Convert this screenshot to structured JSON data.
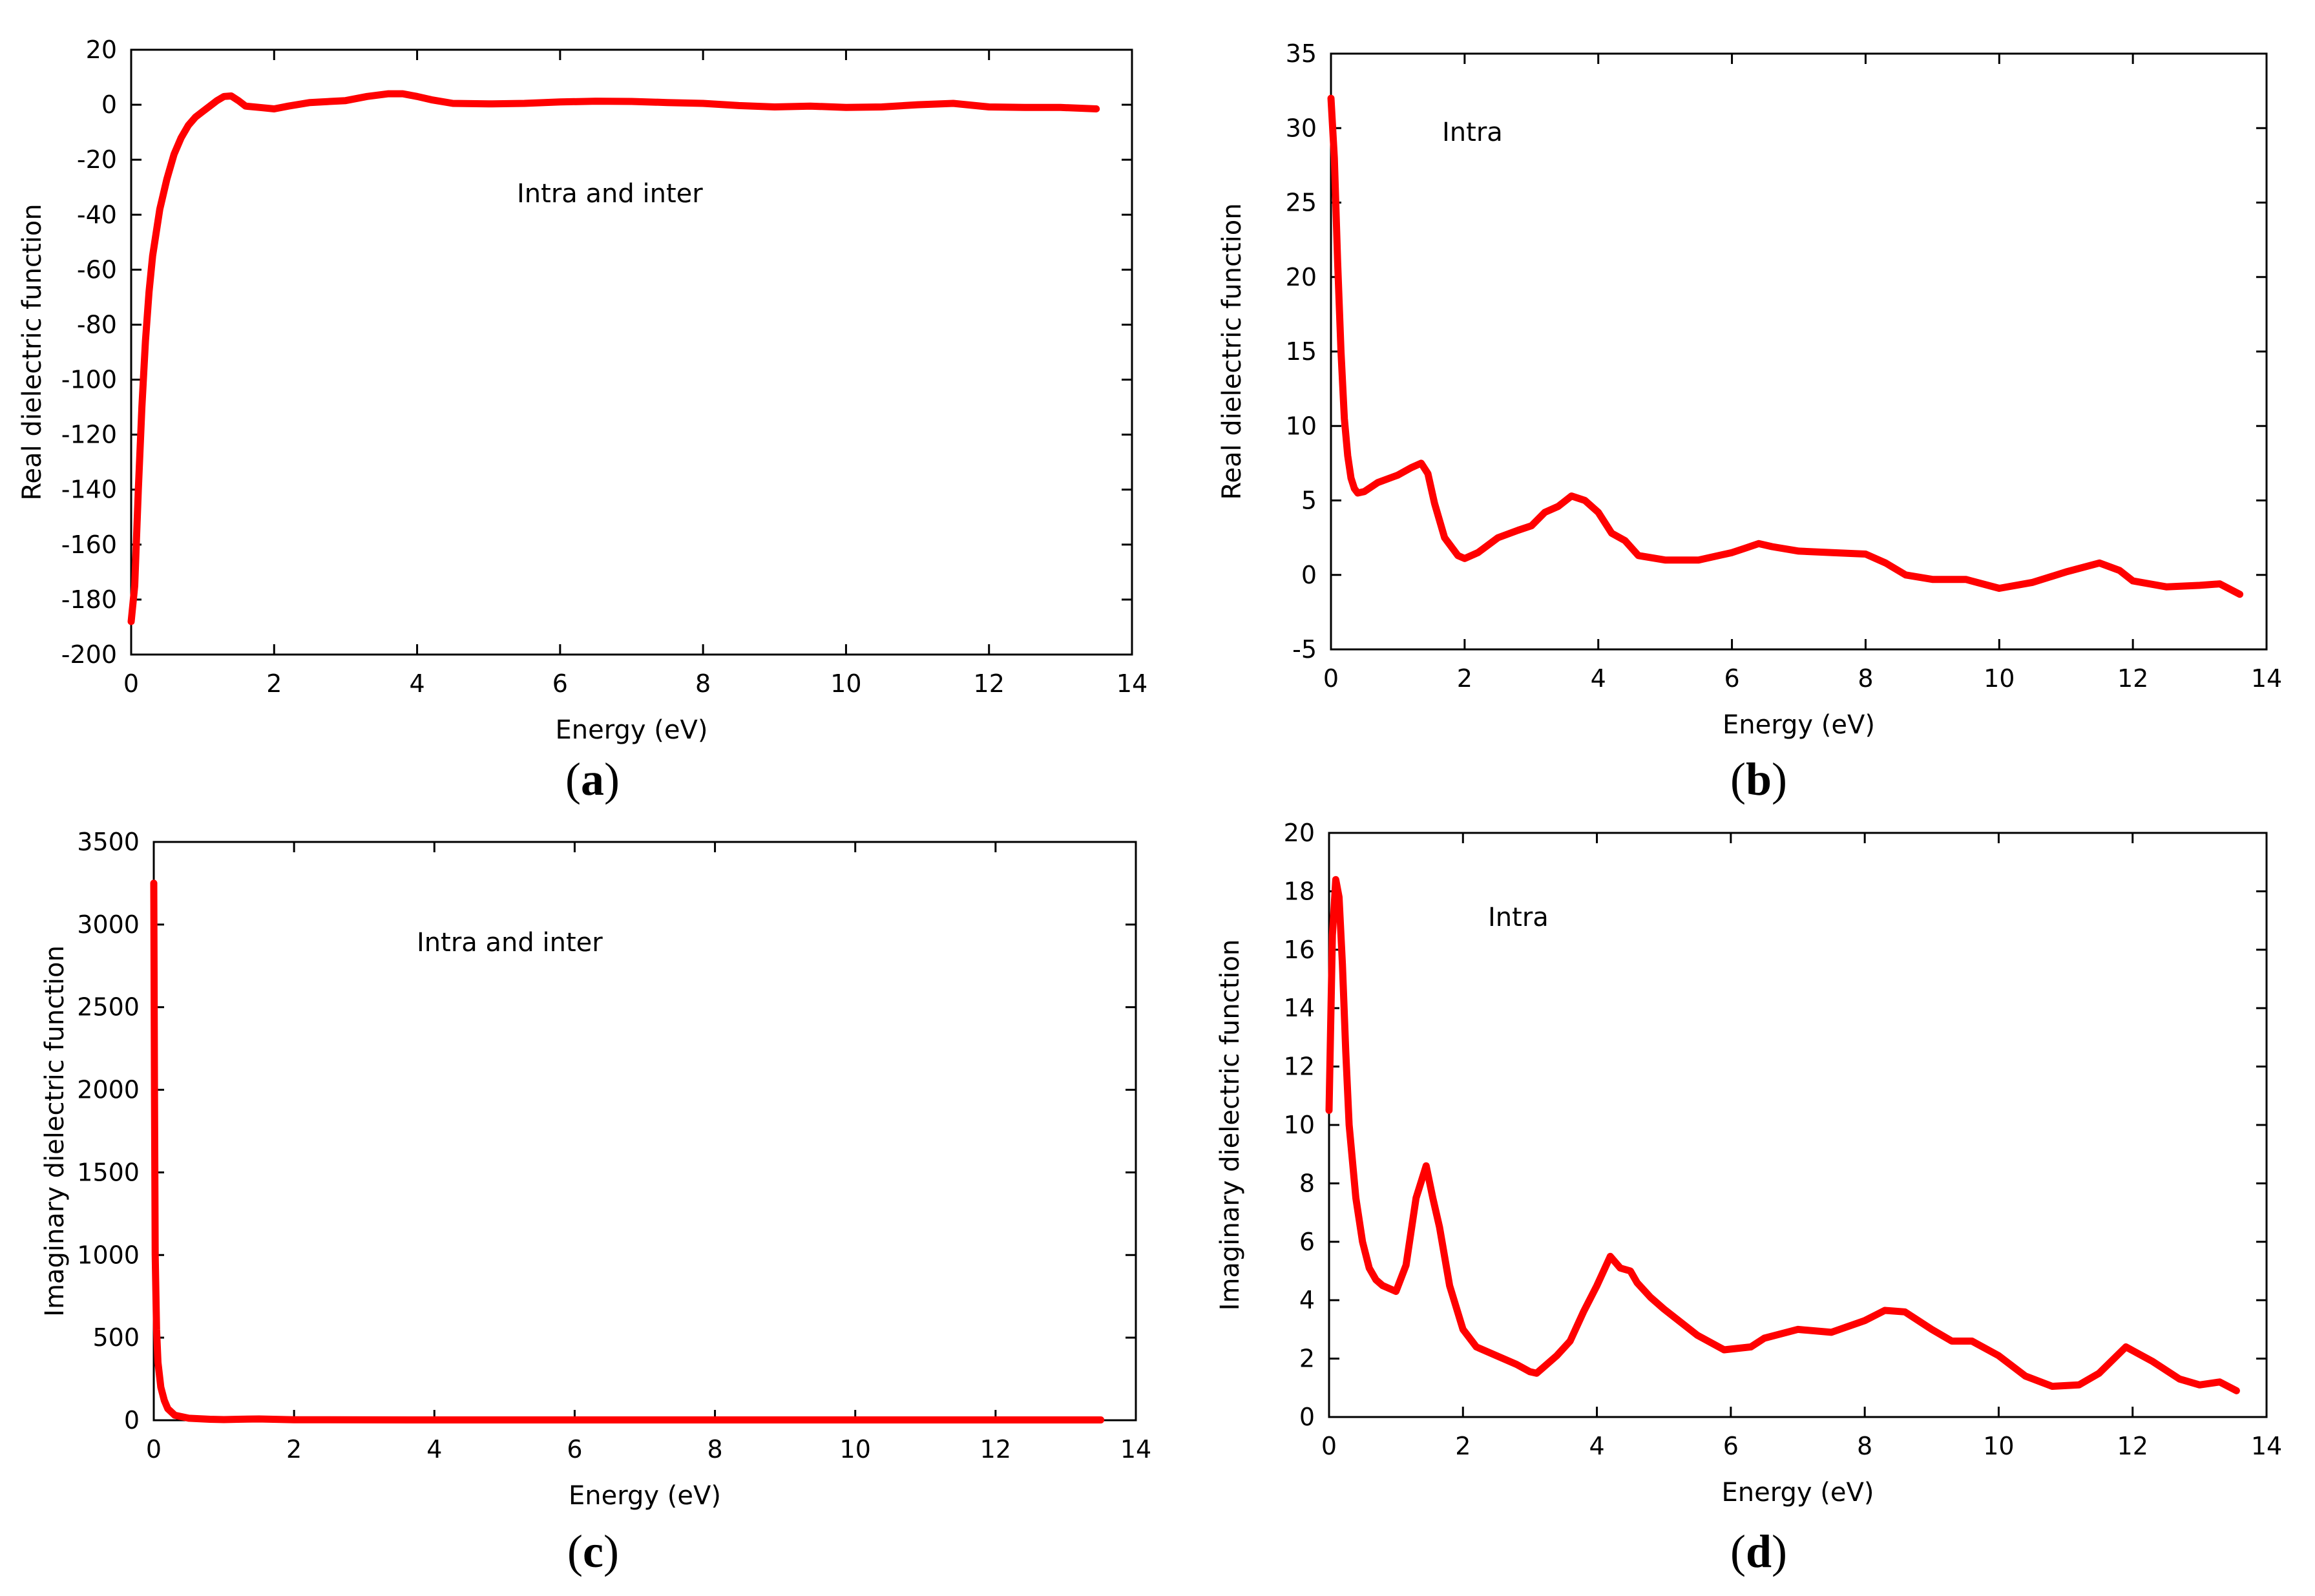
{
  "figure": {
    "line_color": "#ff0000",
    "panels": [
      {
        "id": "a",
        "caption_letter": "a"
      },
      {
        "id": "b",
        "caption_letter": "b"
      },
      {
        "id": "c",
        "caption_letter": "c"
      },
      {
        "id": "d",
        "caption_letter": "d"
      }
    ]
  },
  "chart_data": [
    {
      "id": "a",
      "type": "line",
      "title": "",
      "annotation": "Intra and inter",
      "xlabel": "Energy (eV)",
      "ylabel": "Real dielectric function",
      "xlim": [
        0,
        14
      ],
      "ylim": [
        -200,
        20
      ],
      "xticks": [
        "0",
        "2",
        "4",
        "6",
        "8",
        "10",
        "12",
        "14"
      ],
      "yticks": [
        "20",
        "0",
        "-20",
        "-40",
        "-60",
        "-80",
        "-100",
        "-120",
        "-140",
        "-160",
        "-180",
        "-200"
      ],
      "series": [
        {
          "name": "Intra and inter",
          "x": [
            0,
            0.05,
            0.1,
            0.15,
            0.2,
            0.25,
            0.3,
            0.4,
            0.5,
            0.6,
            0.7,
            0.8,
            0.9,
            1.0,
            1.1,
            1.2,
            1.3,
            1.4,
            1.5,
            1.6,
            1.8,
            2.0,
            2.2,
            2.5,
            3.0,
            3.3,
            3.6,
            3.8,
            4.0,
            4.2,
            4.5,
            5.0,
            5.5,
            6.0,
            6.5,
            7.0,
            7.5,
            8.0,
            8.5,
            9.0,
            9.5,
            10.0,
            10.5,
            11.0,
            11.5,
            12.0,
            12.5,
            13.0,
            13.5
          ],
          "y": [
            -188,
            -175,
            -140,
            -110,
            -86,
            -68,
            -55,
            -38,
            -27,
            -18,
            -12,
            -7.5,
            -4.5,
            -2.5,
            -0.5,
            1.5,
            3,
            3.2,
            1.5,
            -0.5,
            -1,
            -1.5,
            -0.5,
            0.8,
            1.5,
            3,
            4,
            4,
            3,
            1.8,
            0.5,
            0.3,
            0.5,
            1,
            1.3,
            1.2,
            0.8,
            0.5,
            -0.3,
            -0.8,
            -0.5,
            -1,
            -0.8,
            0,
            0.5,
            -0.8,
            -1,
            -1,
            -1.5
          ]
        }
      ]
    },
    {
      "id": "b",
      "type": "line",
      "title": "",
      "annotation": "Intra",
      "xlabel": "Energy (eV)",
      "ylabel": "Real dielectric function",
      "xlim": [
        0,
        14
      ],
      "ylim": [
        -5,
        35
      ],
      "xticks": [
        "0",
        "2",
        "4",
        "6",
        "8",
        "10",
        "12",
        "14"
      ],
      "yticks": [
        "35",
        "30",
        "25",
        "20",
        "15",
        "10",
        "5",
        "0",
        "-5"
      ],
      "series": [
        {
          "name": "Intra",
          "x": [
            0,
            0.05,
            0.1,
            0.15,
            0.2,
            0.25,
            0.3,
            0.35,
            0.4,
            0.5,
            0.7,
            1.0,
            1.2,
            1.35,
            1.45,
            1.55,
            1.7,
            1.9,
            2.0,
            2.2,
            2.5,
            2.8,
            3.0,
            3.2,
            3.4,
            3.6,
            3.8,
            4.0,
            4.2,
            4.4,
            4.6,
            5.0,
            5.5,
            6.0,
            6.2,
            6.4,
            6.6,
            7.0,
            7.5,
            8.0,
            8.3,
            8.6,
            9.0,
            9.5,
            10.0,
            10.5,
            11.0,
            11.5,
            11.8,
            12.0,
            12.5,
            13.0,
            13.3,
            13.6
          ],
          "y": [
            32,
            28,
            21,
            15,
            10.5,
            8,
            6.5,
            5.8,
            5.5,
            5.6,
            6.2,
            6.7,
            7.2,
            7.5,
            6.8,
            4.8,
            2.5,
            1.3,
            1.1,
            1.5,
            2.5,
            3.0,
            3.3,
            4.2,
            4.6,
            5.3,
            5.0,
            4.2,
            2.8,
            2.3,
            1.3,
            1.0,
            1.0,
            1.5,
            1.8,
            2.1,
            1.9,
            1.6,
            1.5,
            1.4,
            0.8,
            0.0,
            -0.3,
            -0.3,
            -0.9,
            -0.5,
            0.2,
            0.8,
            0.3,
            -0.4,
            -0.8,
            -0.7,
            -0.6,
            -1.3
          ]
        }
      ]
    },
    {
      "id": "c",
      "type": "line",
      "title": "",
      "annotation": "Intra and inter",
      "xlabel": "Energy (eV)",
      "ylabel": "Imaginary dielectric function",
      "xlim": [
        0,
        14
      ],
      "ylim": [
        0,
        3500
      ],
      "xticks": [
        "0",
        "2",
        "4",
        "6",
        "8",
        "10",
        "12",
        "14"
      ],
      "yticks": [
        "3500",
        "3000",
        "2500",
        "2000",
        "1500",
        "1000",
        "500",
        "0"
      ],
      "series": [
        {
          "name": "Intra and inter",
          "x": [
            0,
            0.01,
            0.02,
            0.04,
            0.06,
            0.1,
            0.15,
            0.2,
            0.3,
            0.5,
            0.8,
            1.0,
            1.2,
            1.5,
            2.0,
            4.0,
            6.0,
            8.0,
            10.0,
            12.0,
            13.5
          ],
          "y": [
            3250,
            2000,
            1000,
            550,
            350,
            200,
            120,
            70,
            30,
            12,
            6,
            4,
            6,
            8,
            3,
            2,
            2,
            2,
            2,
            2,
            2
          ]
        }
      ]
    },
    {
      "id": "d",
      "type": "line",
      "title": "",
      "annotation": "Intra",
      "xlabel": "Energy (eV)",
      "ylabel": "Imaginary dielectric function",
      "xlim": [
        0,
        14
      ],
      "ylim": [
        0,
        20
      ],
      "xticks": [
        "0",
        "2",
        "4",
        "6",
        "8",
        "10",
        "12",
        "14"
      ],
      "yticks": [
        "20",
        "18",
        "16",
        "14",
        "12",
        "10",
        "8",
        "6",
        "4",
        "2",
        "0"
      ],
      "series": [
        {
          "name": "Intra",
          "x": [
            0,
            0.05,
            0.1,
            0.15,
            0.2,
            0.25,
            0.3,
            0.4,
            0.5,
            0.6,
            0.7,
            0.8,
            1.0,
            1.15,
            1.3,
            1.45,
            1.55,
            1.65,
            1.8,
            2.0,
            2.2,
            2.5,
            2.8,
            3.0,
            3.1,
            3.2,
            3.4,
            3.6,
            3.8,
            4.0,
            4.2,
            4.35,
            4.5,
            4.6,
            4.8,
            5.0,
            5.5,
            5.9,
            6.3,
            6.5,
            7.0,
            7.5,
            8.0,
            8.3,
            8.6,
            9.0,
            9.3,
            9.6,
            10.0,
            10.4,
            10.8,
            11.2,
            11.5,
            11.9,
            12.3,
            12.7,
            13.0,
            13.3,
            13.55
          ],
          "y": [
            10.5,
            16.5,
            18.4,
            17.8,
            15.5,
            12.5,
            10.0,
            7.5,
            6.0,
            5.1,
            4.7,
            4.5,
            4.3,
            5.2,
            7.5,
            8.6,
            7.5,
            6.5,
            4.5,
            3.0,
            2.4,
            2.1,
            1.8,
            1.55,
            1.5,
            1.7,
            2.1,
            2.6,
            3.6,
            4.5,
            5.5,
            5.1,
            5.0,
            4.6,
            4.1,
            3.7,
            2.8,
            2.3,
            2.4,
            2.7,
            3.0,
            2.9,
            3.3,
            3.65,
            3.6,
            3.0,
            2.6,
            2.6,
            2.1,
            1.4,
            1.05,
            1.1,
            1.5,
            2.4,
            1.9,
            1.3,
            1.1,
            1.2,
            0.9
          ]
        }
      ]
    }
  ]
}
